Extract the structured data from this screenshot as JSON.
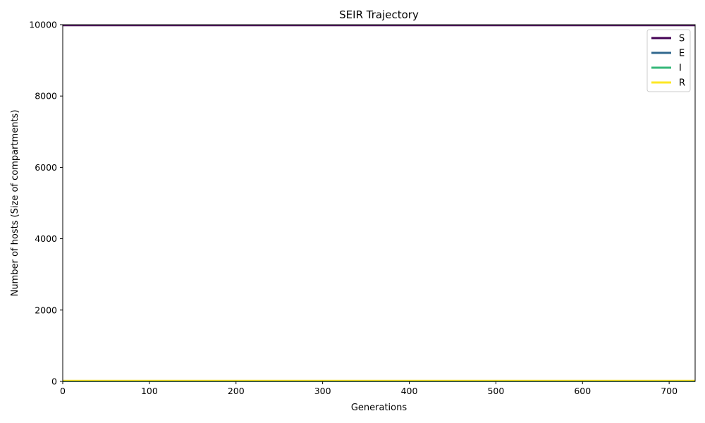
{
  "chart_data": {
    "type": "line",
    "title": "SEIR Trajectory",
    "xlabel": "Generations",
    "ylabel": "Number of hosts (Size of compartments)",
    "xlim": [
      0,
      730
    ],
    "ylim": [
      0,
      10000
    ],
    "xticks": [
      0,
      100,
      200,
      300,
      400,
      500,
      600,
      700
    ],
    "yticks": [
      0,
      2000,
      4000,
      6000,
      8000,
      10000
    ],
    "grid": false,
    "legend_position": "top-right",
    "x": [
      0,
      730
    ],
    "series": [
      {
        "name": "S",
        "color": "#440154",
        "values": [
          9970,
          9970
        ]
      },
      {
        "name": "E",
        "color": "#31688e",
        "values": [
          0,
          0
        ]
      },
      {
        "name": "I",
        "color": "#35b779",
        "values": [
          0,
          0
        ]
      },
      {
        "name": "R",
        "color": "#fde725",
        "values": [
          30,
          30
        ]
      }
    ]
  }
}
